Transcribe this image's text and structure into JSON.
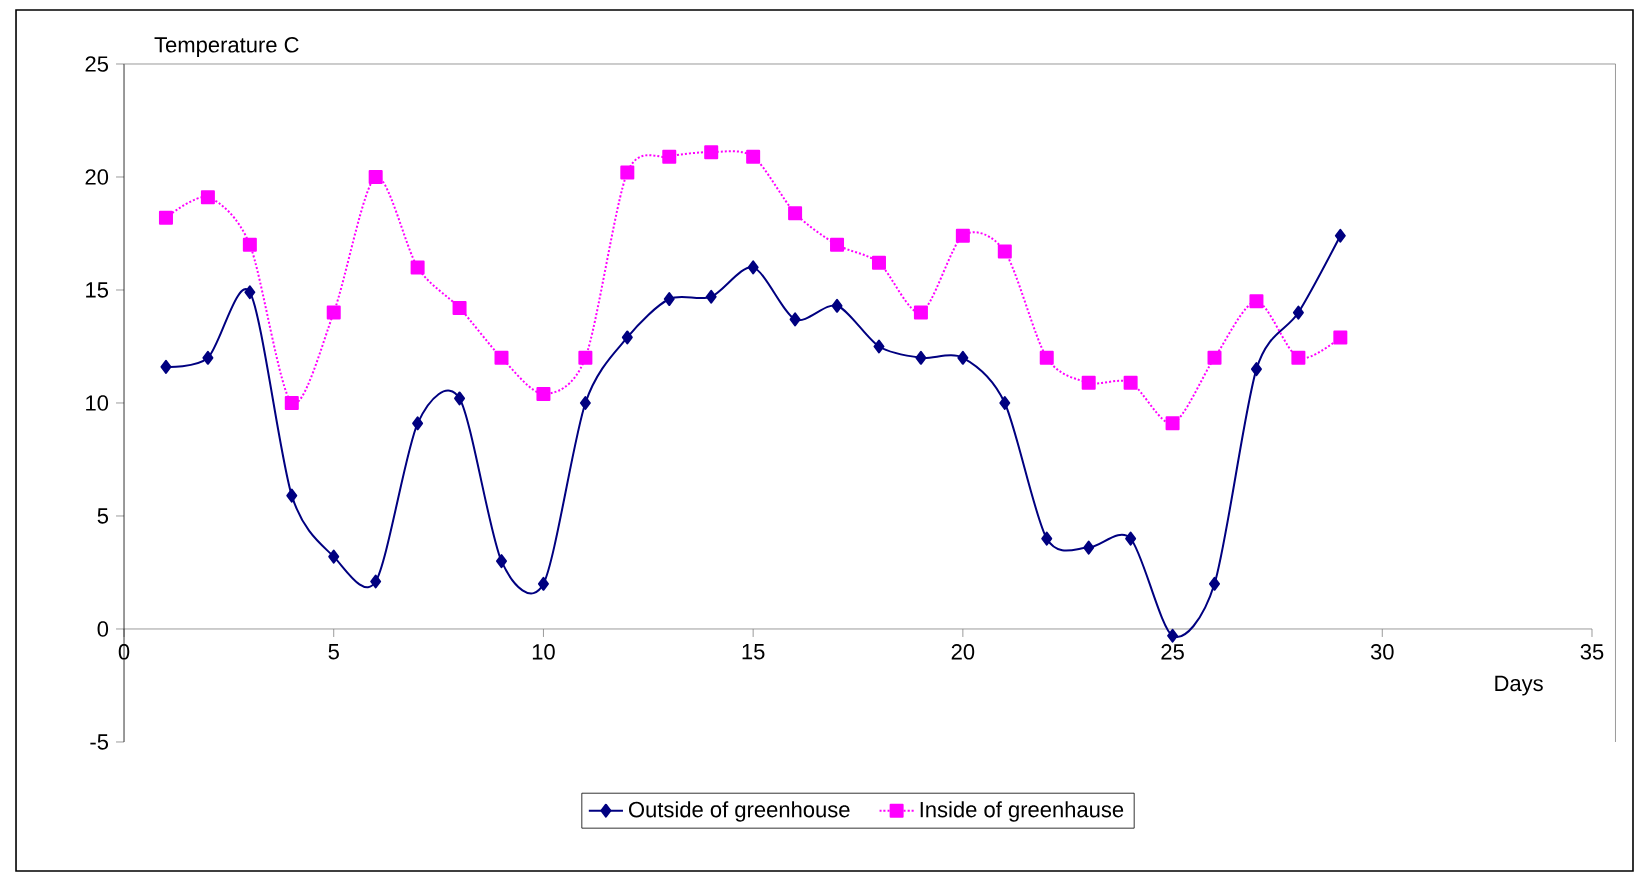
{
  "chart_data": {
    "type": "line",
    "xlabel": "Days",
    "ylabel": "Temperature C",
    "x": [
      1,
      2,
      3,
      4,
      5,
      6,
      7,
      8,
      9,
      10,
      11,
      12,
      13,
      14,
      15,
      16,
      17,
      18,
      19,
      20,
      21,
      22,
      23,
      24,
      25,
      26,
      27,
      28,
      29
    ],
    "series": [
      {
        "name": "Outside of greenhouse",
        "color": "#000080",
        "marker": "diamond",
        "line_style": "solid",
        "values": [
          11.6,
          12.0,
          14.9,
          5.9,
          3.2,
          2.1,
          9.1,
          10.2,
          3.0,
          2.0,
          10.0,
          12.9,
          14.6,
          14.7,
          16.0,
          13.7,
          14.3,
          12.5,
          12.0,
          12.0,
          10.0,
          4.0,
          3.6,
          4.0,
          -0.3,
          2.0,
          11.5,
          14.0,
          17.4
        ]
      },
      {
        "name": "Inside of greenhause",
        "color": "#ff00ff",
        "marker": "square",
        "line_style": "dotted",
        "values": [
          18.2,
          19.1,
          17.0,
          10.0,
          14.0,
          20.0,
          16.0,
          14.2,
          12.0,
          10.4,
          12.0,
          20.2,
          20.9,
          21.1,
          20.9,
          18.4,
          17.0,
          16.2,
          14.0,
          17.4,
          16.7,
          12.0,
          10.9,
          10.9,
          9.1,
          12.0,
          14.5,
          12.0,
          12.9
        ]
      }
    ],
    "xlim": [
      0,
      35
    ],
    "ylim": [
      -5,
      25
    ],
    "xticks": [
      0,
      5,
      10,
      15,
      20,
      25,
      30,
      35
    ],
    "yticks": [
      -5,
      0,
      5,
      10,
      15,
      20,
      25
    ],
    "grid": false,
    "legend": "bottom"
  }
}
